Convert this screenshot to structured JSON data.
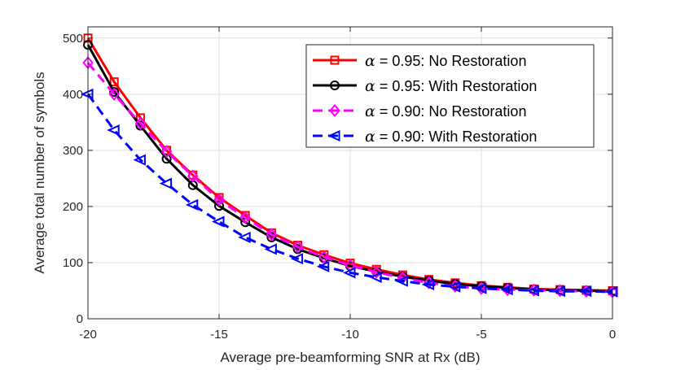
{
  "chart_data": {
    "type": "line",
    "title": "",
    "xlabel": "Average pre-beamforming SNR at Rx (dB)",
    "ylabel": "Average total number of symbols",
    "xlim": [
      -20,
      0
    ],
    "ylim": [
      0,
      520
    ],
    "xticks": [
      -20,
      -15,
      -10,
      -5,
      0
    ],
    "yticks": [
      0,
      100,
      200,
      300,
      400,
      500
    ],
    "grid": true,
    "legend_position": "top-right",
    "x": [
      -20,
      -19,
      -18,
      -17,
      -16,
      -15,
      -14,
      -13,
      -12,
      -11,
      -10,
      -9,
      -8,
      -7,
      -6,
      -5,
      -4,
      -3,
      -2,
      -1,
      0
    ],
    "series": [
      {
        "name": "α = 0.95: No Restoration",
        "symbol": "α",
        "label": " = 0.95: No Restoration",
        "color": "#ff0000",
        "marker": "square",
        "dash": "solid",
        "values": [
          500,
          422,
          358,
          300,
          256,
          216,
          184,
          153,
          131,
          114,
          99,
          88,
          78,
          70,
          64,
          59,
          56,
          53,
          52,
          51,
          50
        ]
      },
      {
        "name": "α = 0.95: With Restoration",
        "symbol": "α",
        "label": " = 0.95: With Restoration",
        "color": "#000000",
        "marker": "circle",
        "dash": "solid",
        "values": [
          488,
          404,
          344,
          285,
          238,
          201,
          172,
          145,
          124,
          108,
          94,
          84,
          75,
          68,
          62,
          58,
          55,
          52,
          51,
          50,
          49
        ]
      },
      {
        "name": "α = 0.90: No Restoration",
        "symbol": "α",
        "label": " = 0.90: No Restoration",
        "color": "#ff00ff",
        "marker": "diamond",
        "dash": "dashed",
        "values": [
          456,
          400,
          348,
          298,
          254,
          212,
          180,
          150,
          128,
          110,
          95,
          83,
          73,
          64,
          58,
          54,
          52,
          51,
          50,
          49,
          48
        ]
      },
      {
        "name": "α = 0.90: With Restoration",
        "symbol": "α",
        "label": " = 0.90: With Restoration",
        "color": "#0000ff",
        "marker": "triangle-left",
        "dash": "dashed",
        "values": [
          400,
          336,
          283,
          241,
          203,
          173,
          145,
          124,
          107,
          93,
          82,
          74,
          67,
          61,
          57,
          54,
          52,
          50,
          49,
          49,
          48
        ]
      }
    ]
  }
}
